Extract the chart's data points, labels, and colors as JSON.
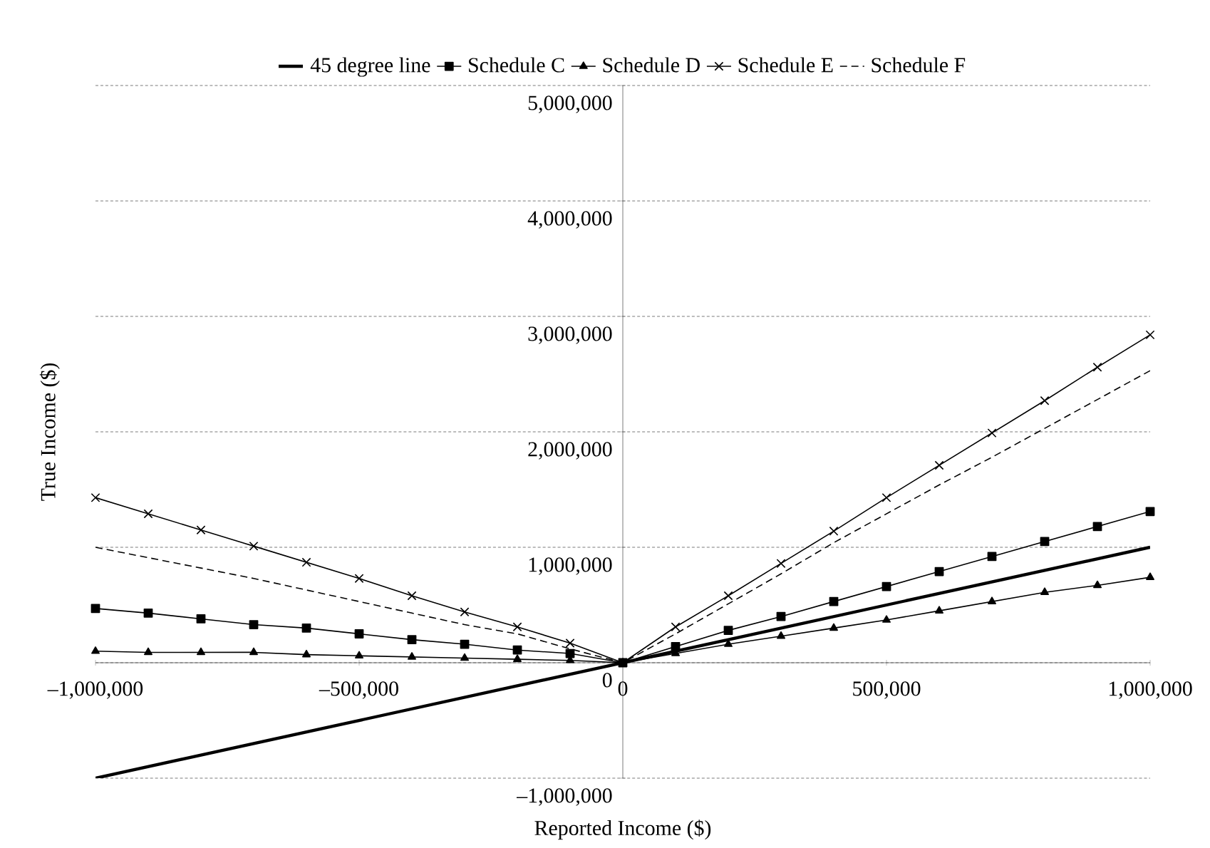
{
  "chart_data": {
    "type": "line",
    "xlabel": "Reported Income ($)",
    "ylabel": "True Income ($)",
    "xlim": [
      -1000000,
      1000000
    ],
    "ylim": [
      -1000000,
      5000000
    ],
    "xticks": [
      {
        "value": -1000000,
        "label": "–1,000,000"
      },
      {
        "value": -500000,
        "label": "–500,000"
      },
      {
        "value": 0,
        "label": "0"
      },
      {
        "value": 500000,
        "label": "500,000"
      },
      {
        "value": 1000000,
        "label": "1,000,000"
      }
    ],
    "yticks": [
      {
        "value": -1000000,
        "label": "–1,000,000"
      },
      {
        "value": 0,
        "label": "0"
      },
      {
        "value": 1000000,
        "label": "1,000,000"
      },
      {
        "value": 2000000,
        "label": "2,000,000"
      },
      {
        "value": 3000000,
        "label": "3,000,000"
      },
      {
        "value": 4000000,
        "label": "4,000,000"
      },
      {
        "value": 5000000,
        "label": "5,000,000"
      }
    ],
    "grid": "y",
    "legend": "top",
    "x": [
      -1000000,
      -900000,
      -800000,
      -700000,
      -600000,
      -500000,
      -400000,
      -300000,
      -200000,
      -100000,
      0,
      100000,
      200000,
      300000,
      400000,
      500000,
      600000,
      700000,
      800000,
      900000,
      1000000
    ],
    "series": [
      {
        "name": "45 degree line",
        "color": "#000000",
        "marker": "none",
        "line_style": "solid",
        "x": [
          -1000000,
          1000000
        ],
        "values": [
          -1000000,
          1000000
        ]
      },
      {
        "name": "Schedule C",
        "color": "#000000",
        "marker": "square",
        "line_style": "solid",
        "values": [
          470000,
          430000,
          380000,
          330000,
          300000,
          250000,
          200000,
          160000,
          110000,
          80000,
          0,
          140000,
          280000,
          400000,
          530000,
          660000,
          790000,
          920000,
          1050000,
          1180000,
          1310000
        ]
      },
      {
        "name": "Schedule D",
        "color": "#000000",
        "marker": "triangle",
        "line_style": "solid",
        "values": [
          100000,
          90000,
          90000,
          90000,
          70000,
          60000,
          50000,
          40000,
          30000,
          20000,
          0,
          80000,
          160000,
          230000,
          300000,
          370000,
          450000,
          530000,
          610000,
          670000,
          740000
        ]
      },
      {
        "name": "Schedule E",
        "color": "#000000",
        "marker": "cross",
        "line_style": "solid",
        "values": [
          1430000,
          1290000,
          1150000,
          1010000,
          870000,
          730000,
          580000,
          440000,
          310000,
          170000,
          0,
          310000,
          580000,
          860000,
          1140000,
          1430000,
          1710000,
          1990000,
          2270000,
          2560000,
          2840000
        ]
      },
      {
        "name": "Schedule F",
        "color": "#000000",
        "marker": "none",
        "line_style": "dashed",
        "values": [
          1000000,
          910000,
          820000,
          730000,
          630000,
          530000,
          430000,
          330000,
          250000,
          120000,
          0,
          250000,
          510000,
          770000,
          1040000,
          1290000,
          1540000,
          1780000,
          2030000,
          2280000,
          2530000
        ]
      }
    ]
  }
}
